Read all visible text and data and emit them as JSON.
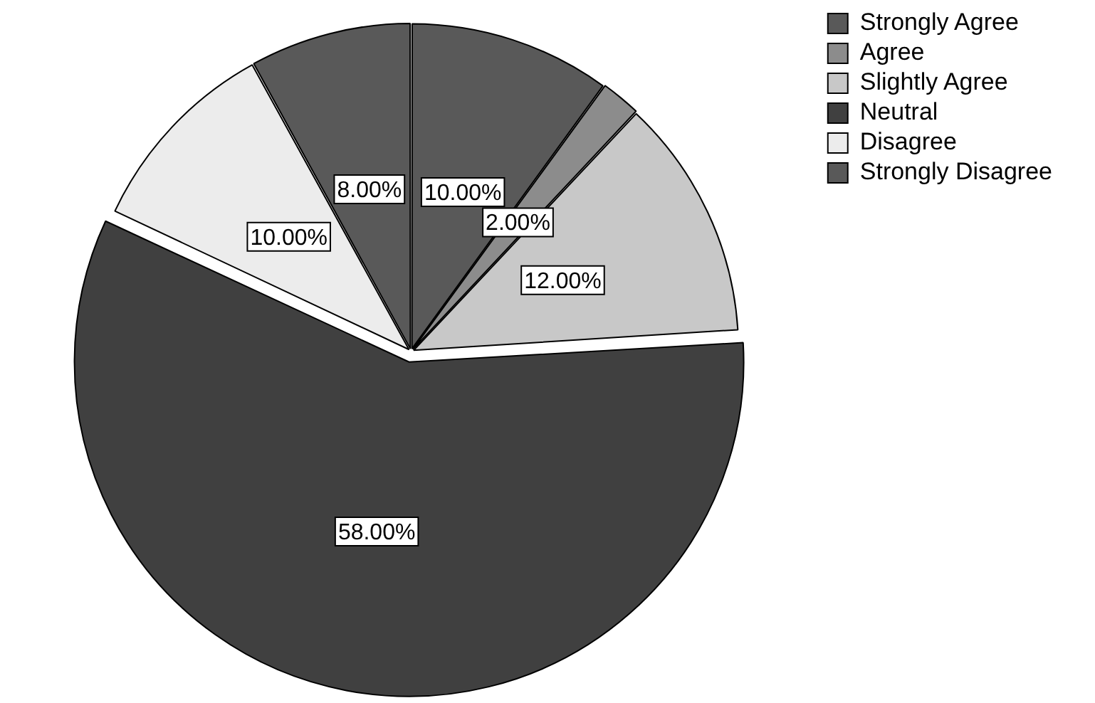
{
  "chart_data": {
    "type": "pie",
    "categories": [
      "Strongly Agree",
      "Agree",
      "Slightly Agree",
      "Neutral",
      "Disagree",
      "Strongly Disagree"
    ],
    "values": [
      10,
      2,
      12,
      58,
      10,
      8
    ],
    "colors": [
      "#595959",
      "#8c8c8c",
      "#c8c8c8",
      "#404040",
      "#ececec",
      "#595959"
    ],
    "value_labels": [
      "10.00%",
      "2.00%",
      "12.00%",
      "58.00%",
      "10.00%",
      "8.00%"
    ],
    "legend": "top right"
  }
}
